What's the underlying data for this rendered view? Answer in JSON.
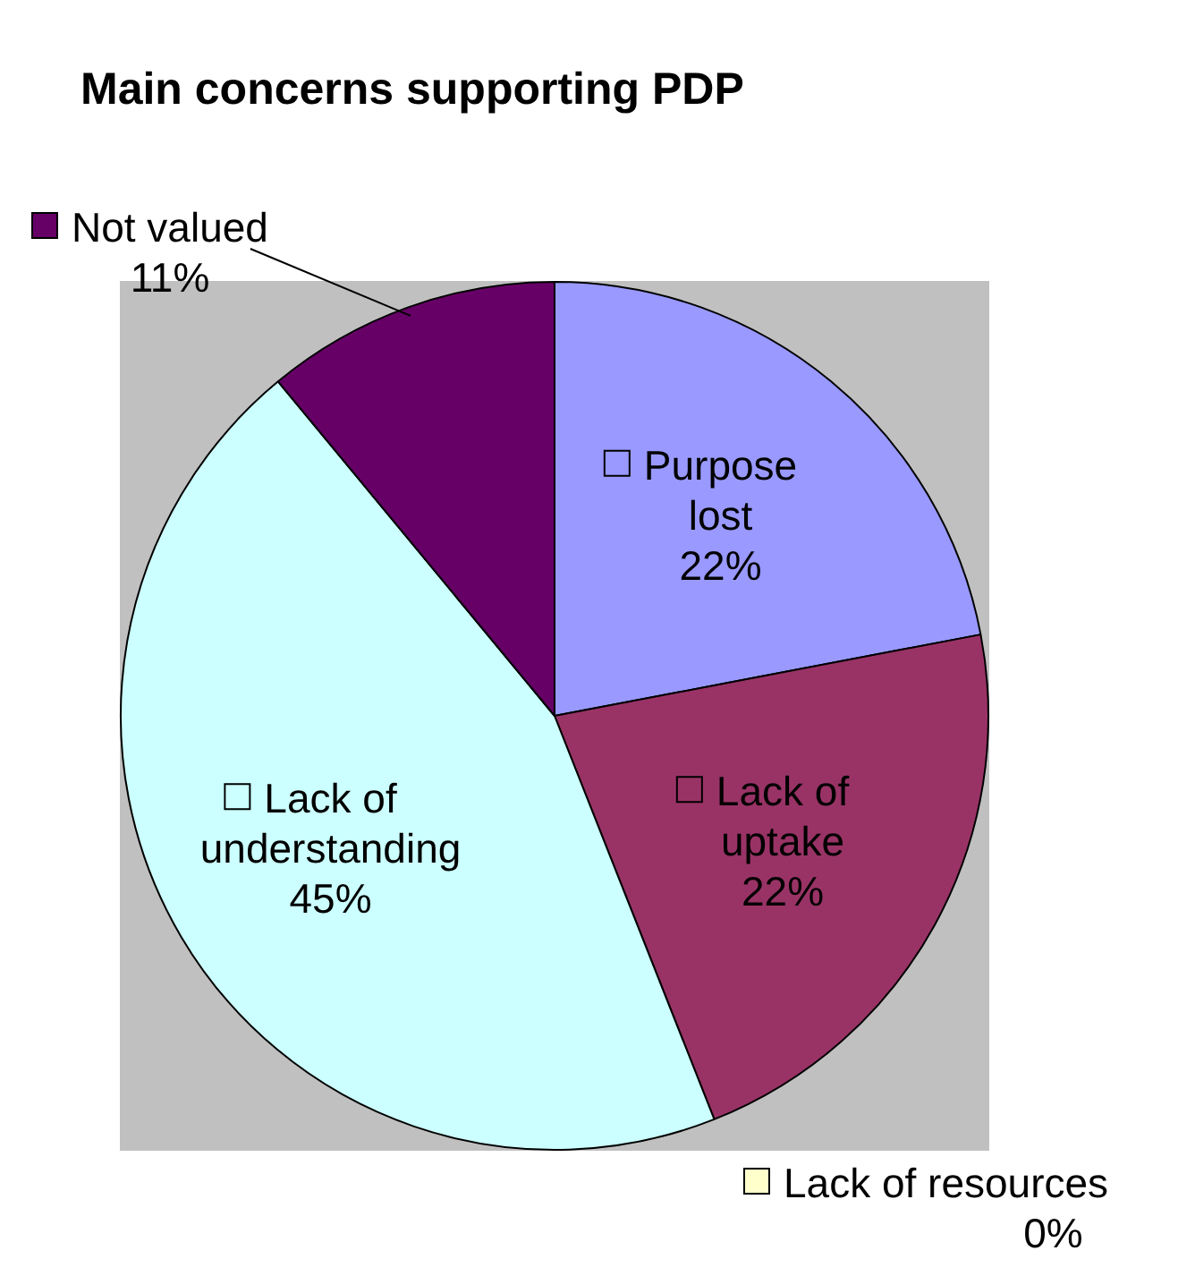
{
  "chart_data": {
    "type": "pie",
    "title": "Main concerns supporting PDP",
    "categories": [
      "Purpose lost",
      "Lack of uptake",
      "Lack of resources",
      "Lack of understanding",
      "Not valued"
    ],
    "values": [
      22,
      22,
      0,
      45,
      11
    ],
    "value_labels": [
      "22%",
      "22%",
      "0%",
      "45%",
      "11%"
    ],
    "colors": [
      "#9999ff",
      "#993366",
      "#ffffcc",
      "#ccffff",
      "#660066"
    ],
    "legend": "top left"
  }
}
